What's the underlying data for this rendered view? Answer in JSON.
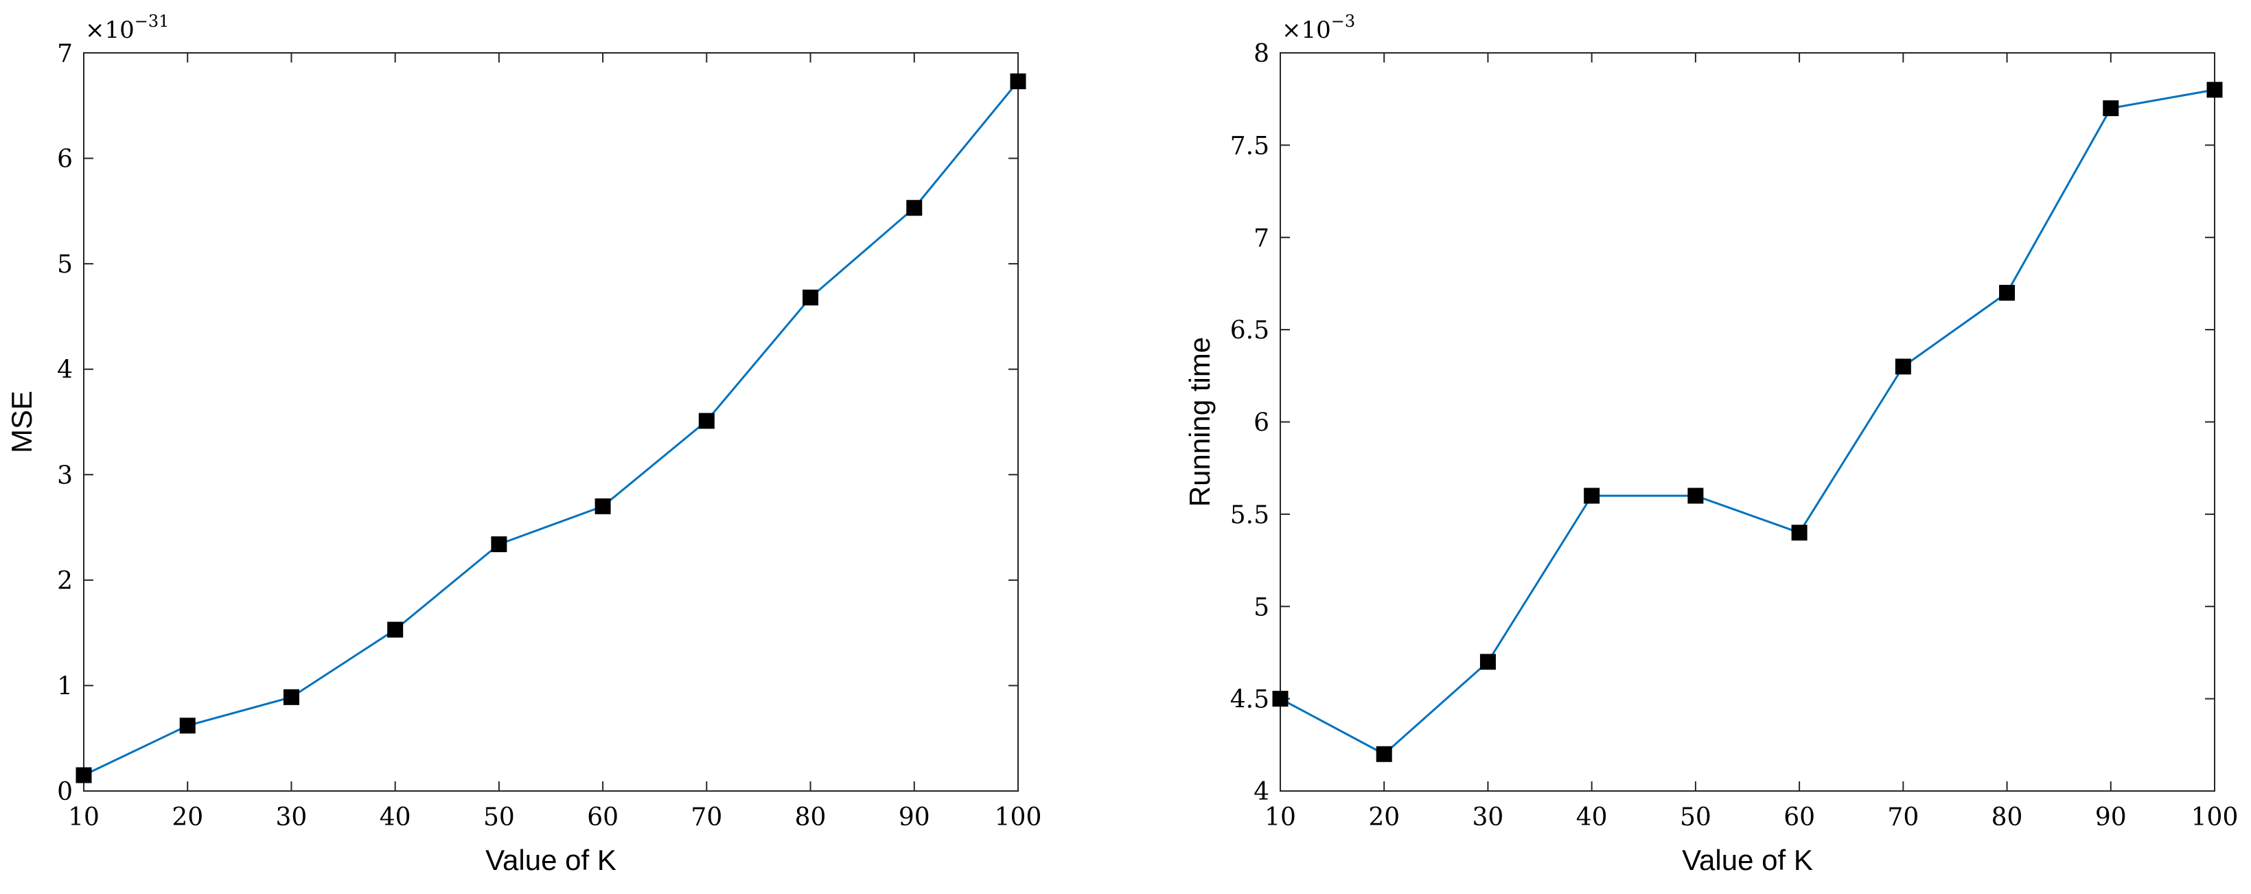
{
  "chart_data": [
    {
      "type": "line",
      "xlabel": "Value of K",
      "ylabel": "MSE",
      "x": [
        10,
        20,
        30,
        40,
        50,
        60,
        70,
        80,
        90,
        100
      ],
      "series": [
        {
          "values": [
            0.15,
            0.62,
            0.89,
            1.53,
            2.34,
            2.7,
            3.51,
            4.68,
            5.53,
            6.73
          ],
          "color": "#0072BD",
          "marker": "filled-square",
          "marker_color": "#000000"
        }
      ],
      "xlim": [
        10,
        100
      ],
      "ylim": [
        0,
        7
      ],
      "xticks": [
        "10",
        "20",
        "30",
        "40",
        "50",
        "60",
        "70",
        "80",
        "90",
        "100"
      ],
      "yticks": [
        "0",
        "1",
        "2",
        "3",
        "4",
        "5",
        "6",
        "7"
      ],
      "ytick_values": [
        0,
        1,
        2,
        3,
        4,
        5,
        6,
        7
      ],
      "exponent": {
        "base": "×10",
        "power": "−31"
      },
      "grid": false,
      "box": true
    },
    {
      "type": "line",
      "xlabel": "Value of K",
      "ylabel": "Running time",
      "x": [
        10,
        20,
        30,
        40,
        50,
        60,
        70,
        80,
        90,
        100
      ],
      "series": [
        {
          "values": [
            4.5,
            4.2,
            4.7,
            5.6,
            5.6,
            5.4,
            6.3,
            6.7,
            7.7,
            7.8
          ],
          "color": "#0072BD",
          "marker": "filled-square",
          "marker_color": "#000000"
        }
      ],
      "xlim": [
        10,
        100
      ],
      "ylim": [
        4,
        8
      ],
      "xticks": [
        "10",
        "20",
        "30",
        "40",
        "50",
        "60",
        "70",
        "80",
        "90",
        "100"
      ],
      "yticks": [
        "4",
        "4.5",
        "5",
        "5.5",
        "6",
        "6.5",
        "7",
        "7.5",
        "8"
      ],
      "ytick_values": [
        4,
        4.5,
        5,
        5.5,
        6,
        6.5,
        7,
        7.5,
        8
      ],
      "exponent": {
        "base": "×10",
        "power": "−3"
      },
      "grid": false,
      "box": true
    }
  ]
}
